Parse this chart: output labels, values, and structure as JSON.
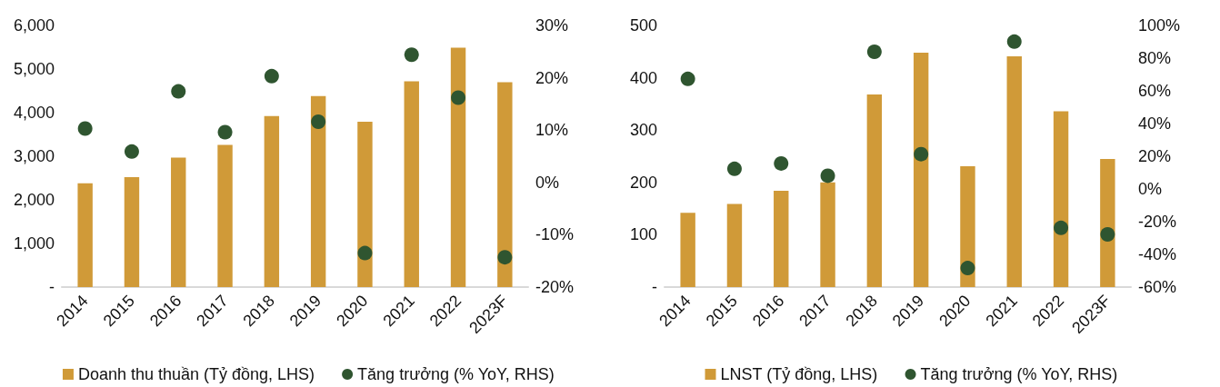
{
  "chart_data": [
    {
      "type": "bar",
      "categories": [
        "2014",
        "2015",
        "2016",
        "2017",
        "2018",
        "2019",
        "2020",
        "2021",
        "2022",
        "2023F"
      ],
      "series": [
        {
          "name": "Doanh thu thuần (Tỷ đồng, LHS)",
          "color": "#d09a38",
          "values": [
            2380,
            2520,
            2970,
            3260,
            3920,
            4380,
            3790,
            4720,
            5490,
            4700
          ]
        },
        {
          "name": "Tăng trưởng (% YoY, RHS)",
          "type": "scatter",
          "axis": "y2",
          "color": "#2f5530",
          "values": [
            10.3,
            5.9,
            17.4,
            9.6,
            20.3,
            11.6,
            -13.5,
            24.4,
            16.2,
            -14.3
          ]
        }
      ],
      "ylim": [
        0,
        6000
      ],
      "yticks": [
        {
          "value": 0,
          "label": "-"
        },
        {
          "value": 1000,
          "label": "1,000"
        },
        {
          "value": 2000,
          "label": "2,000"
        },
        {
          "value": 3000,
          "label": "3,000"
        },
        {
          "value": 4000,
          "label": "4,000"
        },
        {
          "value": 5000,
          "label": "5,000"
        },
        {
          "value": 6000,
          "label": "6,000"
        }
      ],
      "y2lim": [
        -20,
        30
      ],
      "y2ticks": [
        {
          "value": -20,
          "label": "-20%"
        },
        {
          "value": -10,
          "label": "-10%"
        },
        {
          "value": 0,
          "label": "0%"
        },
        {
          "value": 10,
          "label": "10%"
        },
        {
          "value": 20,
          "label": "20%"
        },
        {
          "value": 30,
          "label": "30%"
        }
      ],
      "grid": false,
      "legend": "bottom",
      "marker": "circle"
    },
    {
      "type": "bar",
      "categories": [
        "2014",
        "2015",
        "2016",
        "2017",
        "2018",
        "2019",
        "2020",
        "2021",
        "2022",
        "2023F"
      ],
      "series": [
        {
          "name": "LNST (Tỷ đồng, LHS)",
          "color": "#d09a38",
          "values": [
            142,
            159,
            184,
            200,
            368,
            448,
            231,
            441,
            336,
            245
          ]
        },
        {
          "name": "Tăng trưởng (% YoY, RHS)",
          "type": "scatter",
          "axis": "y2",
          "color": "#2f5530",
          "values": [
            67.3,
            12.3,
            15.6,
            8.1,
            83.9,
            21.3,
            -48.4,
            90.1,
            -23.8,
            -27.8
          ]
        }
      ],
      "ylim": [
        0,
        500
      ],
      "yticks": [
        {
          "value": 0,
          "label": "-"
        },
        100,
        200,
        300,
        400,
        500
      ],
      "y2lim": [
        -60,
        100
      ],
      "y2ticks": [
        {
          "value": -60,
          "label": "-60%"
        },
        {
          "value": -40,
          "label": "-40%"
        },
        {
          "value": -20,
          "label": "-20%"
        },
        {
          "value": 0,
          "label": "0%"
        },
        {
          "value": 20,
          "label": "20%"
        },
        {
          "value": 40,
          "label": "40%"
        },
        {
          "value": 60,
          "label": "60%"
        },
        {
          "value": 80,
          "label": "80%"
        },
        {
          "value": 100,
          "label": "100%"
        }
      ],
      "grid": false,
      "legend": "bottom",
      "marker": "circle"
    }
  ]
}
